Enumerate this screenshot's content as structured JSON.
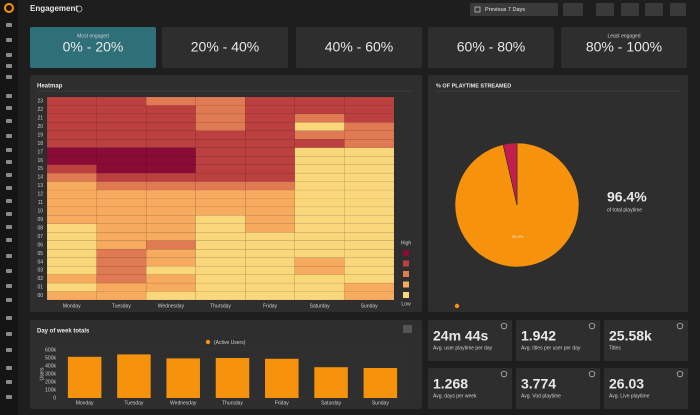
{
  "header": {
    "title": "Engagement",
    "date_range": "Previous 7 Days"
  },
  "range_tiles": [
    {
      "caption": "Most engaged",
      "label": "0% - 20%"
    },
    {
      "label": "20% - 40%"
    },
    {
      "label": "40% - 60%"
    },
    {
      "label": "60% - 80%"
    },
    {
      "caption": "Least engaged",
      "label": "80% - 100%"
    }
  ],
  "heatmap": {
    "type": "heatmap",
    "title": "Heatmap",
    "columns": [
      "Monday",
      "Tuesday",
      "Wednesday",
      "Thursday",
      "Friday",
      "Saturday",
      "Sunday"
    ],
    "rows": [
      "23",
      "22",
      "21",
      "20",
      "19",
      "18",
      "17",
      "16",
      "15",
      "14",
      "13",
      "12",
      "11",
      "10",
      "09",
      "08",
      "07",
      "06",
      "05",
      "04",
      "03",
      "02",
      "01",
      "00"
    ],
    "levels": [
      [
        3,
        3,
        2,
        2,
        3,
        3,
        3
      ],
      [
        3,
        3,
        3,
        2,
        3,
        3,
        3
      ],
      [
        3,
        3,
        3,
        2,
        3,
        2,
        3
      ],
      [
        3,
        3,
        3,
        2,
        3,
        0,
        2
      ],
      [
        3,
        3,
        3,
        3,
        3,
        2,
        2
      ],
      [
        3,
        3,
        3,
        3,
        3,
        3,
        2
      ],
      [
        4,
        4,
        4,
        3,
        3,
        0,
        0
      ],
      [
        4,
        4,
        4,
        3,
        3,
        0,
        0
      ],
      [
        3,
        4,
        4,
        3,
        3,
        0,
        0
      ],
      [
        2,
        3,
        3,
        3,
        3,
        0,
        0
      ],
      [
        1,
        2,
        2,
        2,
        2,
        0,
        0
      ],
      [
        1,
        1,
        1,
        1,
        1,
        0,
        0
      ],
      [
        1,
        1,
        1,
        1,
        1,
        0,
        0
      ],
      [
        1,
        1,
        1,
        1,
        1,
        0,
        0
      ],
      [
        1,
        1,
        1,
        0,
        1,
        0,
        0
      ],
      [
        0,
        1,
        1,
        0,
        1,
        0,
        0
      ],
      [
        0,
        1,
        1,
        0,
        0,
        0,
        0
      ],
      [
        0,
        1,
        2,
        0,
        0,
        0,
        0
      ],
      [
        0,
        2,
        1,
        0,
        0,
        0,
        0
      ],
      [
        0,
        2,
        1,
        0,
        0,
        1,
        0
      ],
      [
        0,
        2,
        0,
        0,
        0,
        1,
        0
      ],
      [
        1,
        2,
        1,
        0,
        0,
        0,
        0
      ],
      [
        0,
        1,
        1,
        0,
        0,
        0,
        1
      ],
      [
        1,
        1,
        0,
        0,
        0,
        0,
        1
      ]
    ],
    "level_colors": [
      "#fbd77c",
      "#f6ab5e",
      "#e07a52",
      "#bd4040",
      "#8a0b36"
    ],
    "legend_high": "High",
    "legend_low": "Low"
  },
  "pie": {
    "type": "pie",
    "title": "% OF PLAYTIME STREAMED",
    "values": [
      96.4,
      3.6
    ],
    "colors": [
      "#f7920c",
      "#c41e4e"
    ],
    "value_labels": [
      "96.4%",
      null
    ],
    "headline": "96.4%",
    "headline_caption": "of total playtime"
  },
  "bar_chart": {
    "type": "bar",
    "title": "Day of week totals",
    "legend": "(Active Users)",
    "y_label": "Users",
    "color": "#f7920c",
    "categories": [
      "Monday",
      "Tuesday",
      "Wednesday",
      "Thursday",
      "Friday",
      "Saturday",
      "Sunday"
    ],
    "values": [
      515000,
      545000,
      495000,
      500000,
      490000,
      385000,
      375000
    ],
    "ylim": [
      0,
      600000
    ],
    "yticks": [
      0,
      {
        "value": 100000,
        "label": "100k"
      },
      {
        "value": 200000,
        "label": "200k"
      },
      {
        "value": 300000,
        "label": "300k"
      },
      {
        "value": 400000,
        "label": "400k"
      },
      {
        "value": 500000,
        "label": "500k"
      },
      {
        "value": 600000,
        "label": "600k"
      }
    ]
  },
  "stats": [
    {
      "value": "24m 44s",
      "label": "Avg. user playtime per day"
    },
    {
      "value": "1.942",
      "label": "Avg. titles per user per day"
    },
    {
      "value": "25.58k",
      "label": "Titles"
    },
    {
      "value": "1.268",
      "label": "Avg. days per week"
    },
    {
      "value": "3.774",
      "label": "Avg. Vod playtime"
    },
    {
      "value": "26.03",
      "label": "Avg. Live playtime"
    }
  ]
}
